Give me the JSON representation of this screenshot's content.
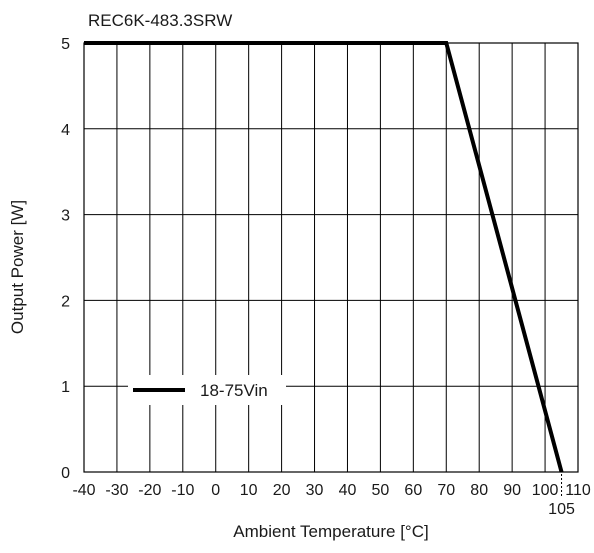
{
  "chart_data": {
    "type": "line",
    "title": "REC6K-483.3SRW",
    "xlabel": "Ambient Temperature [°C]",
    "ylabel": "Output Power [W]",
    "xlim": [
      -40,
      110
    ],
    "ylim": [
      0,
      5
    ],
    "x_ticks": [
      -40,
      -30,
      -20,
      -10,
      0,
      10,
      20,
      30,
      40,
      50,
      60,
      70,
      80,
      90,
      100,
      110
    ],
    "x_tick_labels": [
      "-40",
      "-30",
      "-20",
      "-10",
      "0",
      "10",
      "20",
      "30",
      "40",
      "50",
      "60",
      "70",
      "80",
      "90",
      "100",
      "110"
    ],
    "extra_x_tick": {
      "value": 105,
      "label": "105"
    },
    "y_ticks": [
      0,
      1,
      2,
      3,
      4,
      5
    ],
    "y_tick_labels": [
      "0",
      "1",
      "2",
      "3",
      "4",
      "5"
    ],
    "grid": true,
    "legend_position": "bottom-left",
    "series": [
      {
        "name": "18-75Vin",
        "color": "#000000",
        "points": [
          {
            "x": -40,
            "y": 5
          },
          {
            "x": 70,
            "y": 5
          },
          {
            "x": 105,
            "y": 0
          }
        ]
      }
    ]
  }
}
